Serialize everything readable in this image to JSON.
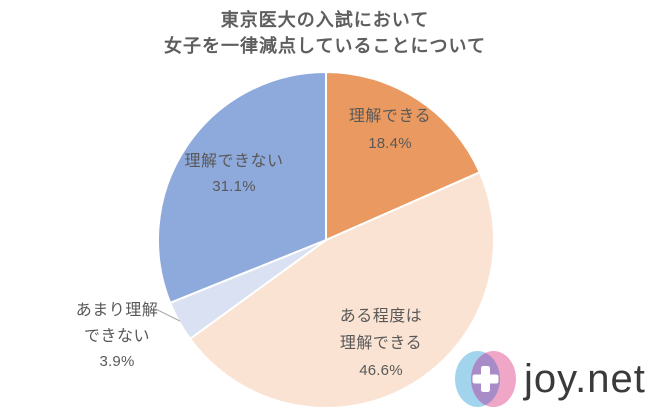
{
  "title": {
    "line1": "東京医大の入試において",
    "line2": "女子を一律減点していることについて"
  },
  "chart_data": {
    "type": "pie",
    "title": "東京医大の入試において女子を一律減点していることについて",
    "start_angle_deg": 0,
    "direction": "clockwise",
    "legend": "none",
    "label_color": "#595959",
    "slices": [
      {
        "label": "理解できる",
        "value": 18.4,
        "pct_label": "18.4%",
        "color": "#EA9A60",
        "label_lines": [
          "理解できる"
        ],
        "label_position": "inside"
      },
      {
        "label": "ある程度は理解できる",
        "value": 46.6,
        "pct_label": "46.6%",
        "color": "#FAE3D2",
        "label_lines": [
          "ある程度は",
          "理解できる"
        ],
        "label_position": "inside"
      },
      {
        "label": "あまり理解できない",
        "value": 3.9,
        "pct_label": "3.9%",
        "color": "#D9E1F2",
        "label_lines": [
          "あまり理解",
          "できない"
        ],
        "label_position": "outside-with-leader-line"
      },
      {
        "label": "理解できない",
        "value": 31.1,
        "pct_label": "31.1%",
        "color": "#8EA9DB",
        "label_lines": [
          "理解できない"
        ],
        "label_position": "inside"
      }
    ]
  },
  "logo": {
    "text": "joy.net",
    "colors": {
      "blue": "#A3D4EE",
      "pink": "#F0A6C6",
      "overlap": "#A78CC8",
      "plus": "#FFFFFF",
      "text": "#3A3A3A"
    }
  }
}
